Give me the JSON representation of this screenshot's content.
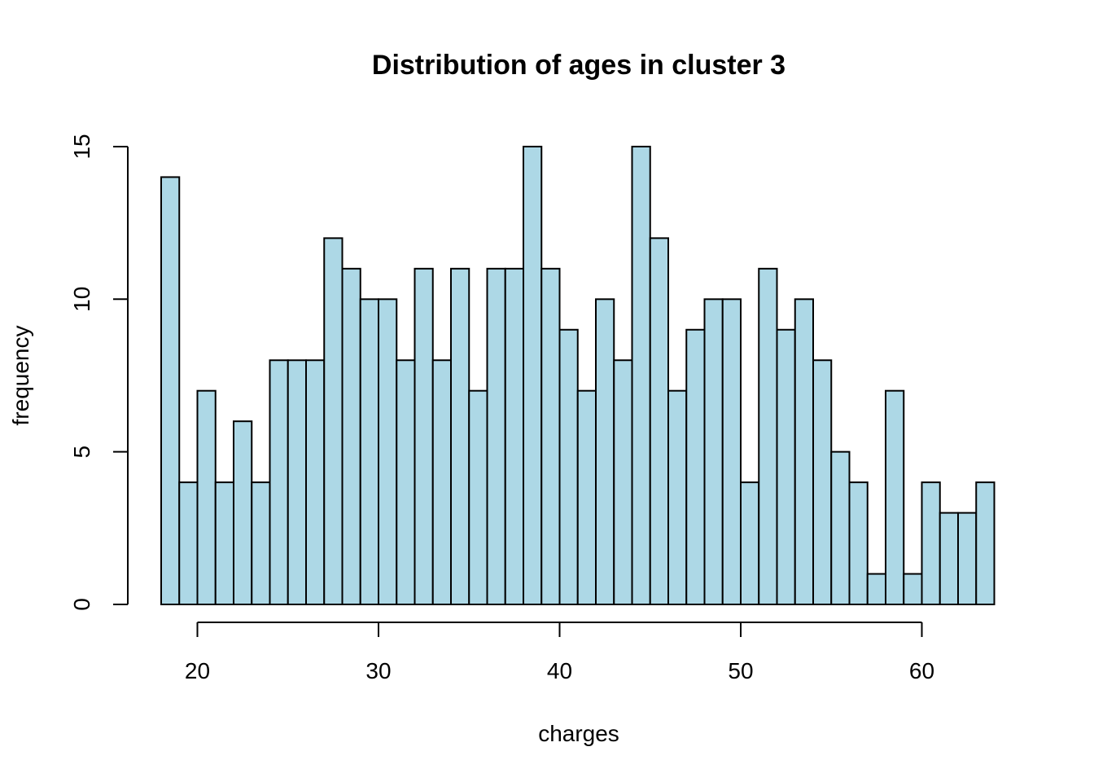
{
  "chart_data": {
    "type": "bar",
    "title": "Distribution of ages in cluster 3",
    "xlabel": "charges",
    "ylabel": "frequency",
    "bin_start": 18,
    "bin_width": 1,
    "values": [
      14,
      4,
      7,
      4,
      6,
      4,
      8,
      8,
      8,
      12,
      11,
      10,
      10,
      8,
      11,
      8,
      11,
      7,
      11,
      11,
      15,
      11,
      9,
      7,
      10,
      8,
      15,
      12,
      7,
      9,
      10,
      10,
      4,
      11,
      9,
      10,
      8,
      5,
      4,
      1,
      7,
      1,
      4,
      3,
      3,
      4
    ],
    "xticks": [
      20,
      30,
      40,
      50,
      60
    ],
    "yticks": [
      0,
      5,
      10,
      15
    ],
    "ylim": [
      0,
      15
    ],
    "grid": false,
    "colors": {
      "bar_fill": "#add8e6",
      "bar_stroke": "#000000"
    }
  }
}
